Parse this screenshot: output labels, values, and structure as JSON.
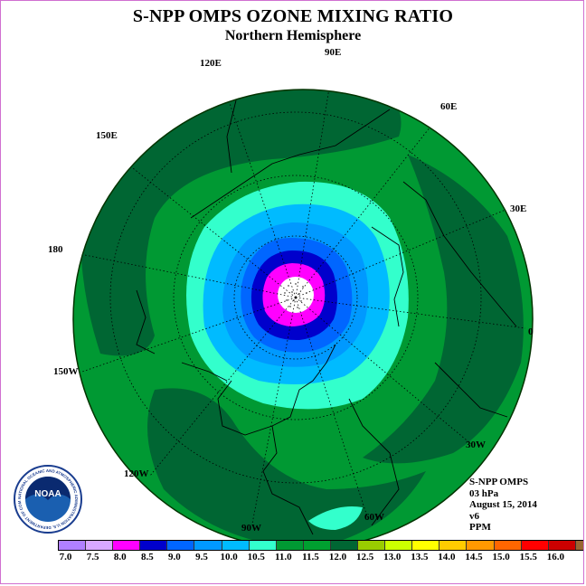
{
  "header": {
    "title": "S-NPP OMPS OZONE MIXING RATIO",
    "subtitle": "Northern Hemisphere"
  },
  "map": {
    "projection": "north polar stereographic",
    "longitude_labels": [
      "0",
      "30E",
      "60E",
      "90E",
      "120E",
      "150E",
      "180",
      "150W",
      "120W",
      "90W",
      "60W",
      "30W"
    ],
    "colors": {
      "ppm_11_0_11_5": "#009933",
      "ppm_11_5_12_0": "#006633",
      "ppm_10_5_11_0": "#33ffcc",
      "ppm_10_0_10_5": "#00ccff",
      "ppm_9_5_10_0": "#0099ff",
      "ppm_9_0_9_5": "#0066ff",
      "ppm_8_5_9_0": "#0000cc",
      "ppm_8_0_8_5": "#ff00ff",
      "pole_missing": "#ffffff"
    }
  },
  "info": {
    "instrument": "S-NPP OMPS",
    "level": "03 hPa",
    "date": "August 15, 2014",
    "version": "v6",
    "units": "PPM"
  },
  "colorbar": {
    "colors": [
      "#b080ff",
      "#d8a8ff",
      "#ff00ff",
      "#0000cc",
      "#0066ff",
      "#0099ff",
      "#00bbff",
      "#33ffcc",
      "#009933",
      "#00a030",
      "#006633",
      "#99cc00",
      "#ccff00",
      "#ffff00",
      "#ffcc00",
      "#ff9900",
      "#ff6600",
      "#ff0000",
      "#cc0000",
      "#996633"
    ],
    "labels": [
      "7.0",
      "7.5",
      "8.0",
      "8.5",
      "9.0",
      "9.5",
      "10.0",
      "10.5",
      "11.0",
      "11.5",
      "12.0",
      "12.5",
      "13.0",
      "13.5",
      "14.0",
      "14.5",
      "15.0",
      "15.5",
      "16.0"
    ]
  },
  "logo": {
    "text": "NOAA",
    "ring_text": "NATIONAL OCEANIC AND ATMOSPHERIC ADMINISTRATION U.S. DEPARTMENT OF COMMERCE"
  }
}
